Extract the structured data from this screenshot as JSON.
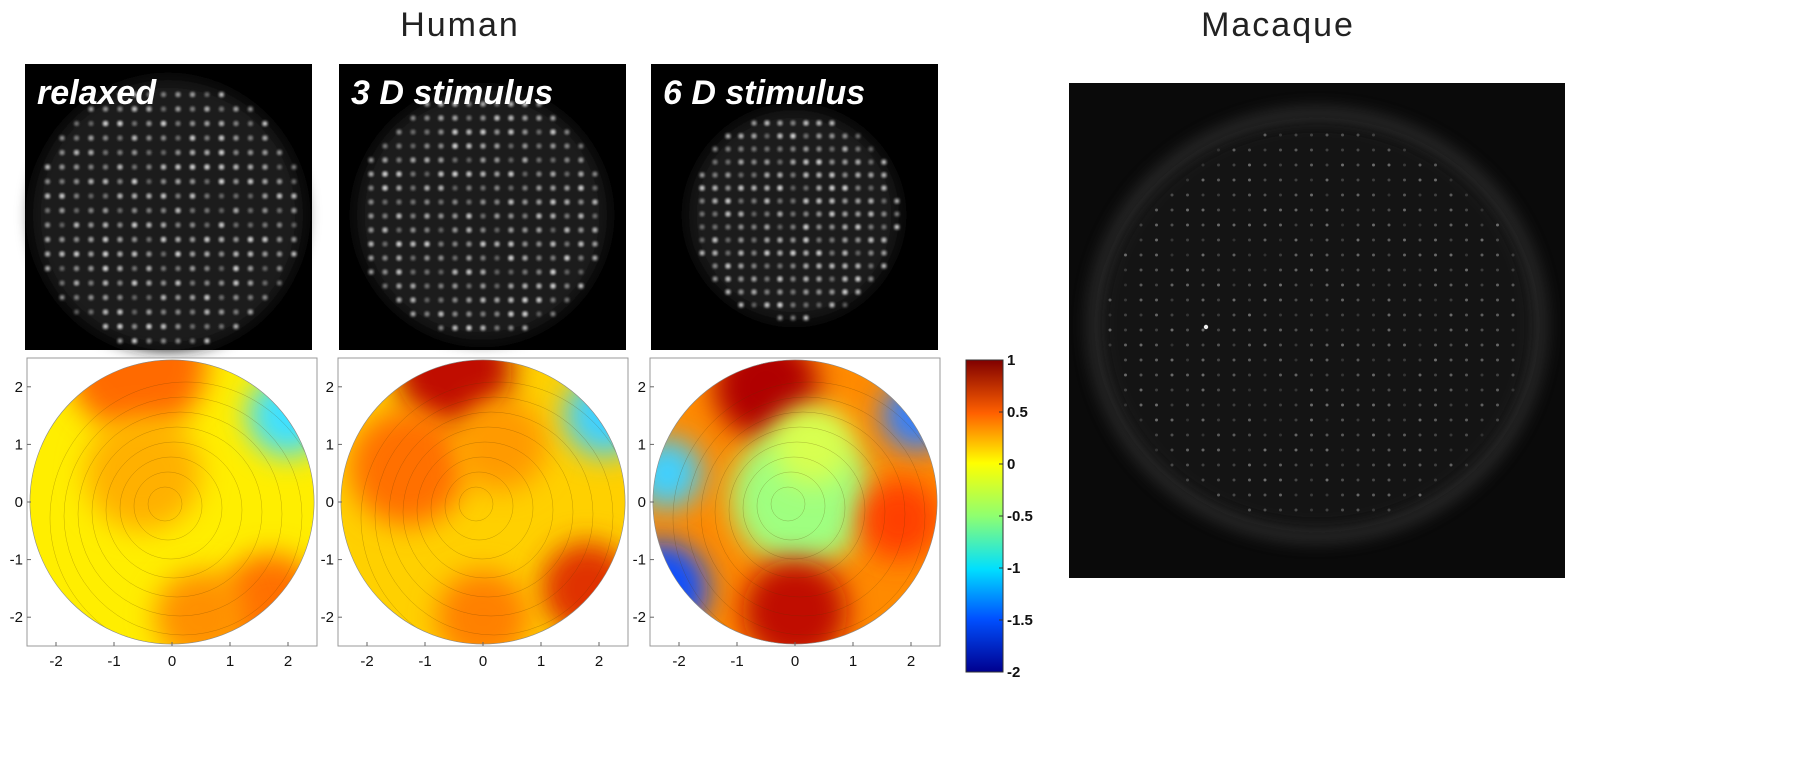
{
  "titles": {
    "human": "Human",
    "macaque": "Macaque"
  },
  "panels": [
    {
      "label": "relaxed",
      "xlim": [
        -2.5,
        2.5
      ],
      "ylim": [
        -2.5,
        2.5
      ],
      "xticks": [
        -2,
        -1,
        0,
        1,
        2
      ],
      "yticks": [
        2,
        1,
        0,
        -1,
        -2
      ]
    },
    {
      "label": "3 D stimulus",
      "xlim": [
        -2.5,
        2.5
      ],
      "ylim": [
        -2.5,
        2.5
      ],
      "xticks": [
        -2,
        -1,
        0,
        1,
        2
      ],
      "yticks": [
        2,
        1,
        0,
        -1,
        -2
      ]
    },
    {
      "label": "6 D stimulus",
      "xlim": [
        -2.5,
        2.5
      ],
      "ylim": [
        -2.5,
        2.5
      ],
      "xticks": [
        -2,
        -1,
        0,
        1,
        2
      ],
      "yticks": [
        2,
        1,
        0,
        -1,
        -2
      ]
    }
  ],
  "colorbar": {
    "lim": [
      -2,
      1
    ],
    "ticks": [
      1,
      0.5,
      0,
      -0.5,
      -1,
      -1.5,
      -2
    ]
  }
}
